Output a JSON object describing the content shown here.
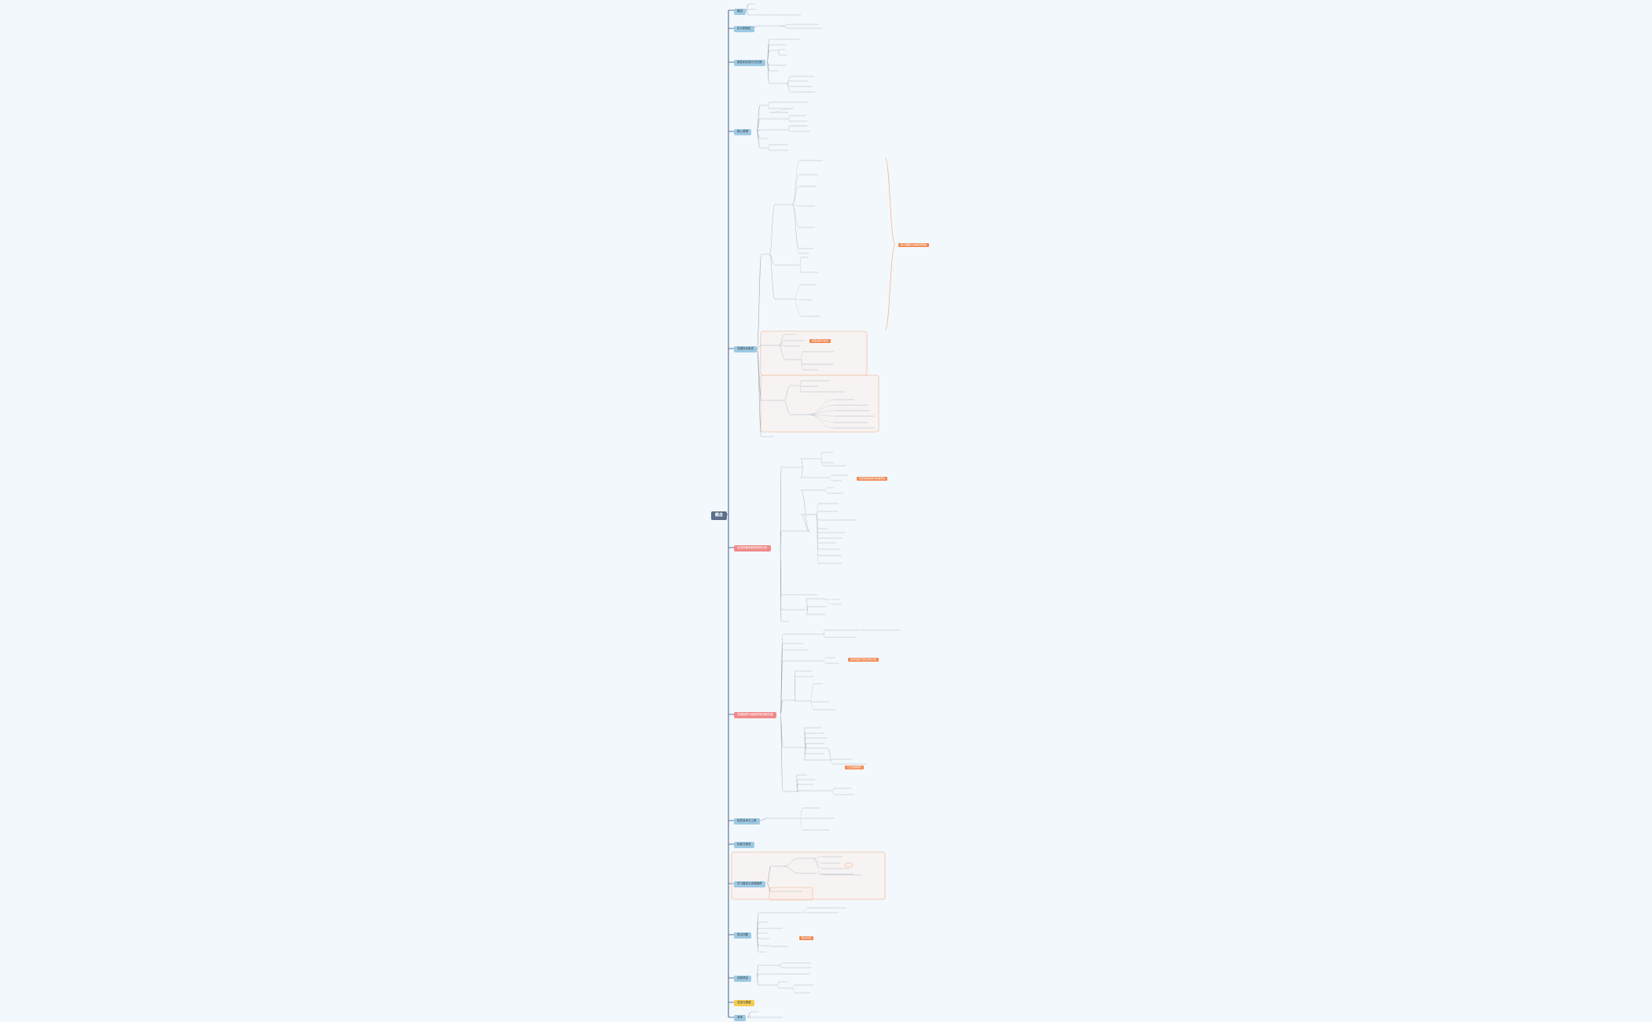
{
  "colors": {
    "background": "#f3f8fc",
    "root": "#5b6f8a",
    "branch_blue": "#9ec9e2",
    "branch_red": "#f08a8a",
    "branch_yellow": "#f5cc52",
    "callout": "#f08a55",
    "connector": "#5b7a99",
    "connector_soft": "#f2b594"
  },
  "mindmap": {
    "root": "概念",
    "branches": [
      {
        "label": "概念",
        "style": "blue"
      },
      {
        "label": "定义和特征",
        "style": "blue"
      },
      {
        "label": "属性和实现方式分类",
        "style": "blue"
      },
      {
        "label": "核心原理",
        "style": "blue"
      },
      {
        "label": "关键技术组成",
        "style": "blue"
      },
      {
        "label": "应用场景和典型案例分析",
        "style": "red"
      },
      {
        "label": "发展趋势与面临的挑战和机遇",
        "style": "red"
      },
      {
        "label": "相关技术与工具",
        "style": "blue"
      },
      {
        "label": "标准与规范",
        "style": "blue"
      },
      {
        "label": "学习路径与资源推荐",
        "style": "blue"
      },
      {
        "label": "常见问题",
        "style": "blue"
      },
      {
        "label": "实践项目",
        "style": "blue"
      },
      {
        "label": "总结与展望",
        "style": "yellow"
      },
      {
        "label": "参考",
        "style": "blue"
      }
    ],
    "callouts": [
      "核心推理与决策机制概述",
      "模型训练与优化",
      "应用落地案例与效果评估",
      "技术挑战与潜在风险分析",
      "行业发展趋势",
      "重点内容"
    ]
  }
}
